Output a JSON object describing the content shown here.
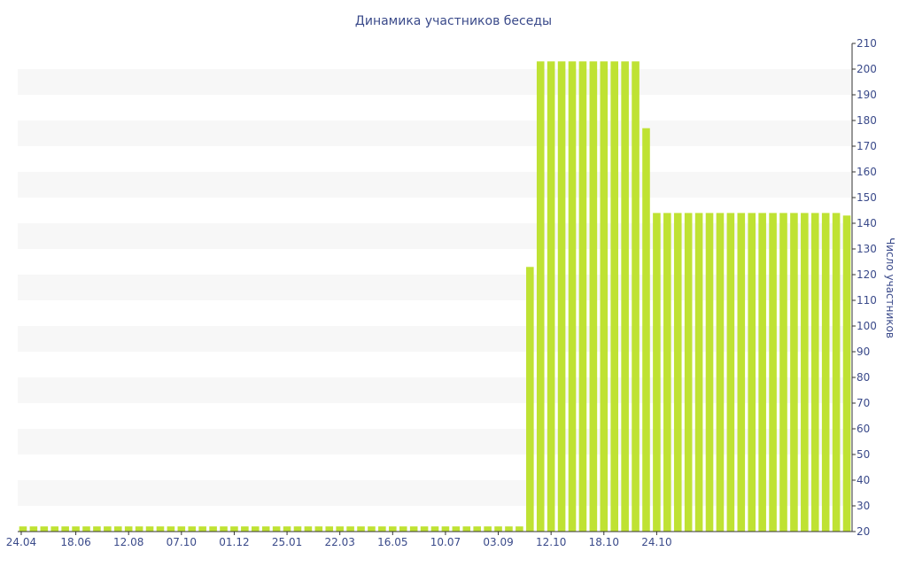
{
  "chart_data": {
    "type": "bar",
    "title": "Динамика участников беседы",
    "xlabel": "",
    "ylabel": "Число участников",
    "ylim": [
      20,
      210
    ],
    "y_ticks": [
      20,
      30,
      40,
      50,
      60,
      70,
      80,
      90,
      100,
      110,
      120,
      130,
      140,
      150,
      160,
      170,
      180,
      190,
      200,
      210
    ],
    "x_ticks": [
      "24.04",
      "18.06",
      "12.08",
      "07.10",
      "01.12",
      "25.01",
      "22.03",
      "16.05",
      "10.07",
      "03.09",
      "12.10",
      "18.10",
      "24.10"
    ],
    "grid": "alternating horizontal bands",
    "y_axis_side": "right",
    "bar_color": "#bfe233",
    "values": [
      22,
      22,
      22,
      22,
      22,
      22,
      22,
      22,
      22,
      22,
      22,
      22,
      22,
      22,
      22,
      22,
      22,
      22,
      22,
      22,
      22,
      22,
      22,
      22,
      22,
      22,
      22,
      22,
      22,
      22,
      22,
      22,
      22,
      22,
      22,
      22,
      22,
      22,
      22,
      22,
      22,
      22,
      22,
      22,
      22,
      22,
      22,
      22,
      123,
      203,
      203,
      203,
      203,
      203,
      203,
      203,
      203,
      203,
      203,
      177,
      144,
      144,
      144,
      144,
      144,
      144,
      144,
      144,
      144,
      144,
      144,
      144,
      144,
      144,
      144,
      144,
      144,
      144,
      143
    ]
  }
}
